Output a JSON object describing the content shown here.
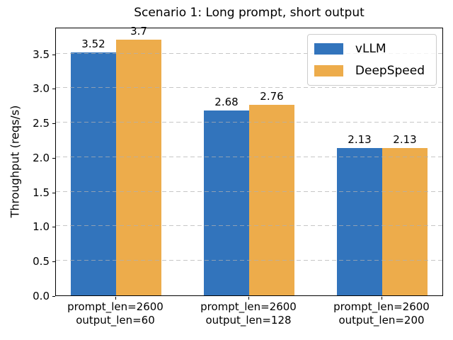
{
  "chart_data": {
    "type": "bar",
    "title": "Scenario 1: Long prompt, short output",
    "xlabel": "",
    "ylabel": "Throughput (reqs/s)",
    "categories": [
      "prompt_len=2600\noutput_len=60",
      "prompt_len=2600\noutput_len=128",
      "prompt_len=2600\noutput_len=200"
    ],
    "series": [
      {
        "name": "vLLM",
        "color": "#3274BC",
        "values": [
          3.52,
          2.68,
          2.13
        ],
        "bar_labels": [
          "3.52",
          "2.68",
          "2.13"
        ]
      },
      {
        "name": "DeepSpeed",
        "color": "#EDAC4B",
        "values": [
          3.7,
          2.76,
          2.13
        ],
        "bar_labels": [
          "3.7",
          "2.76",
          "2.13"
        ]
      }
    ],
    "ylim": [
      0,
      3.885
    ],
    "yticks": [
      0.0,
      0.5,
      1.0,
      1.5,
      2.0,
      2.5,
      3.0,
      3.5
    ],
    "grid": "horizontal-dashed-over-bars",
    "grid_color": "#b0b0b0",
    "legend_position": "upper right",
    "background": "#ffffff"
  }
}
